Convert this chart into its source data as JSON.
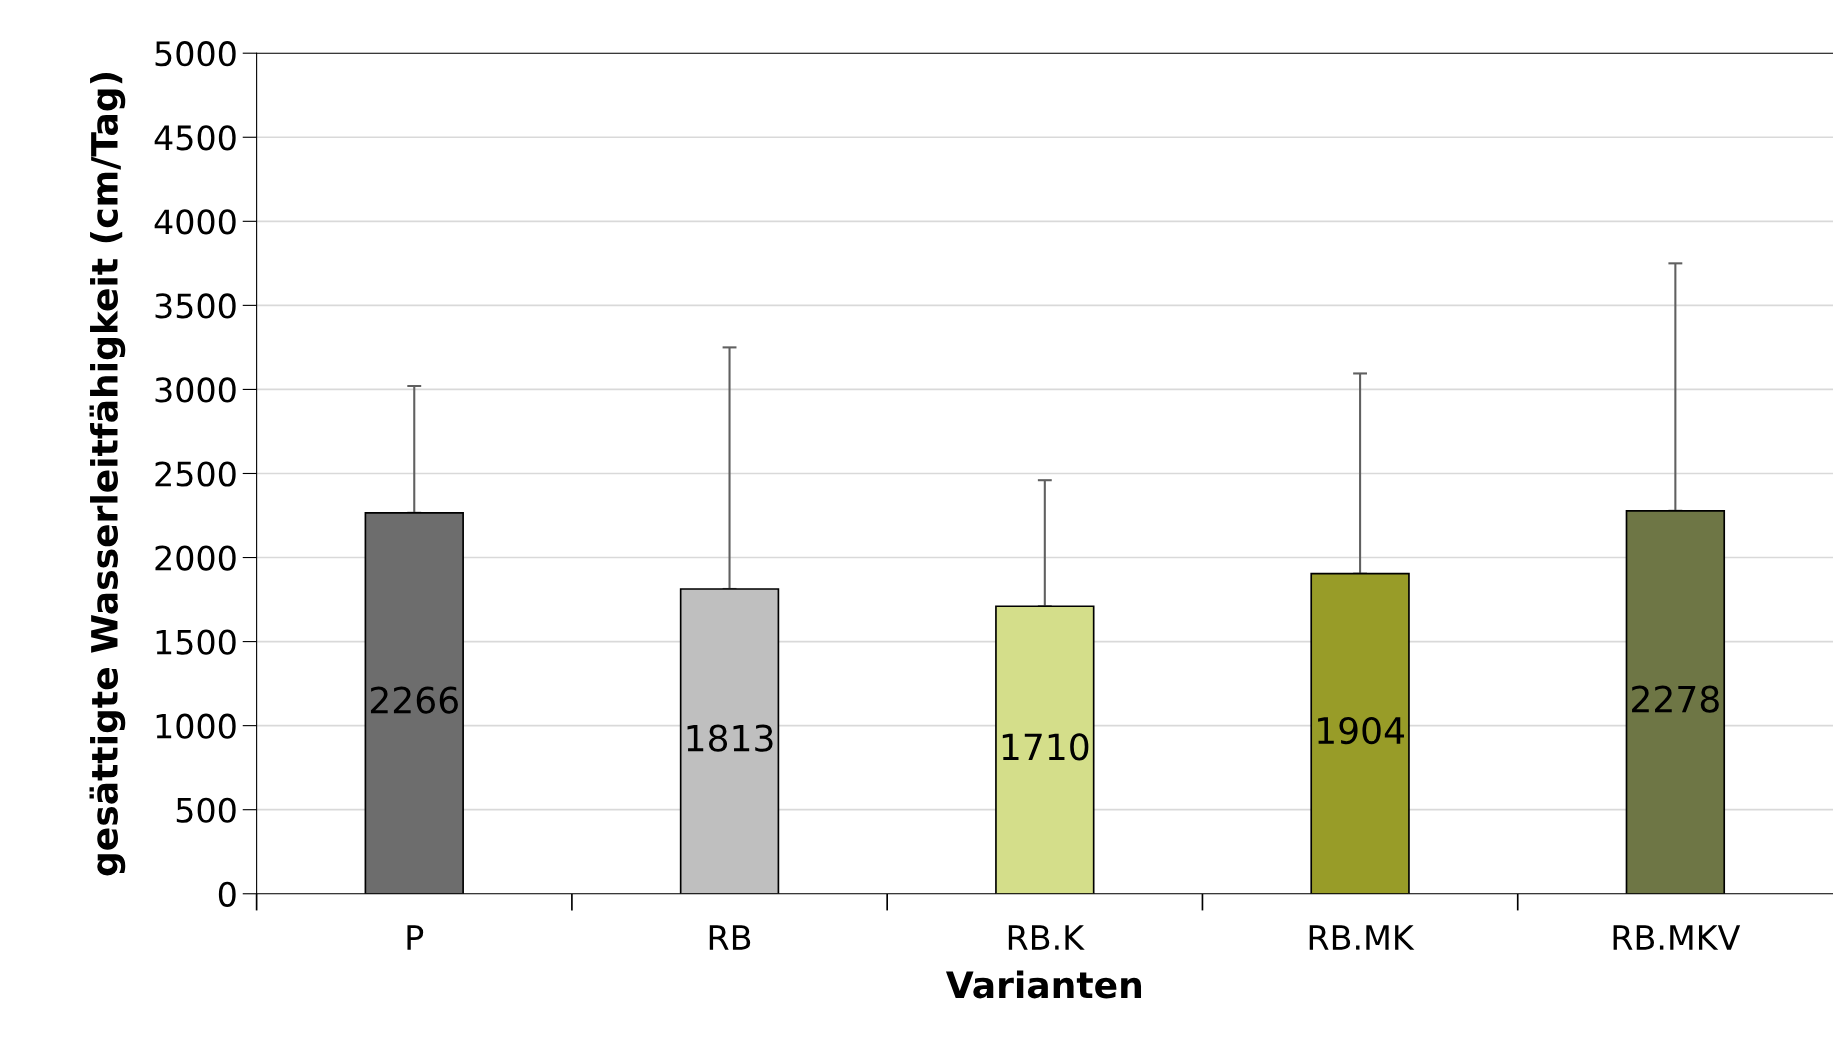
{
  "chart_data": {
    "type": "bar",
    "xlabel": "Varianten",
    "ylabel": "gesättigte Wasserleitfähigkeit (cm/Tag)",
    "categories": [
      "P",
      "RB",
      "RB.K",
      "RB.MK",
      "RB.MKV"
    ],
    "values": [
      2266,
      1813,
      1710,
      1904,
      2278
    ],
    "colors": [
      "#6d6d6d",
      "#bfbfbf",
      "#d4de8a",
      "#989c28",
      "#6e7645"
    ],
    "errors": [
      [
        2266,
        3020
      ],
      [
        1813,
        3250
      ],
      [
        1710,
        2460
      ],
      [
        1904,
        3095
      ],
      [
        2278,
        3750
      ]
    ],
    "ylim": [
      0,
      5000
    ],
    "yticks": [
      0,
      500,
      1000,
      1500,
      2000,
      2500,
      3000,
      3500,
      4000,
      4500,
      5000
    ],
    "grid": "y",
    "data_labels": true,
    "legend": false
  }
}
